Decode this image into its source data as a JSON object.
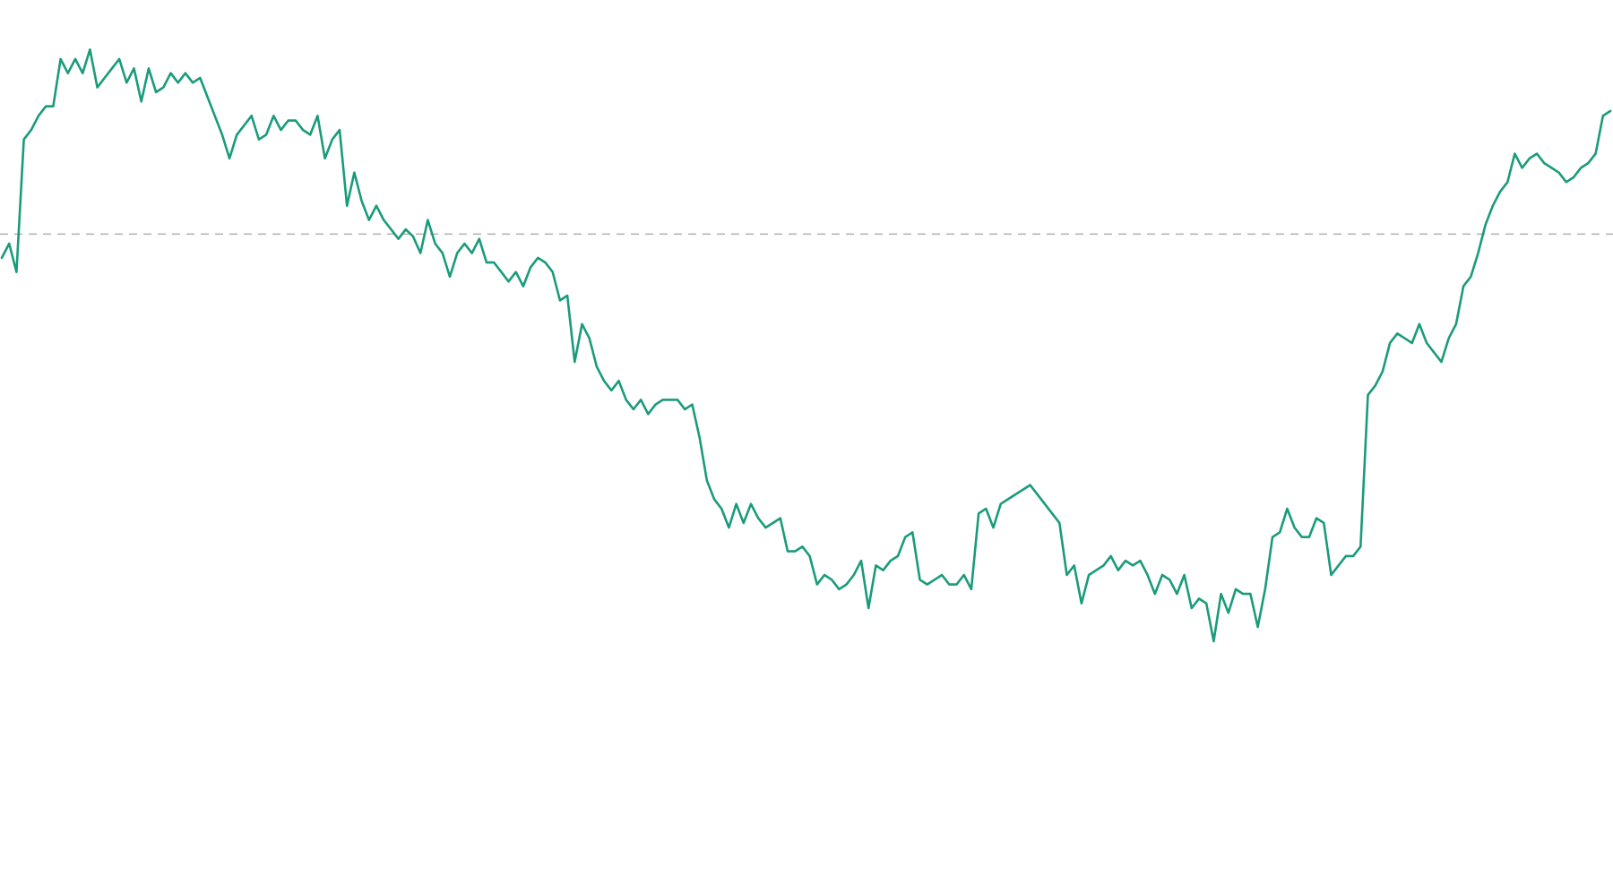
{
  "chart_data": {
    "type": "line",
    "title": "",
    "xlabel": "",
    "ylabel": "",
    "grid": false,
    "legend": "none",
    "reference_line": {
      "value": 0,
      "style": "dashed",
      "color": "#b0b0b0"
    },
    "ylim": [
      -100,
      40
    ],
    "series": [
      {
        "name": "",
        "color": "#1a9b7b",
        "values": [
          -5,
          -2,
          -8,
          20,
          22,
          25,
          27,
          27,
          37,
          34,
          37,
          34,
          39,
          31,
          33,
          35,
          37,
          32,
          35,
          28,
          35,
          30,
          31,
          34,
          32,
          34,
          32,
          33,
          29,
          25,
          21,
          16,
          21,
          23,
          25,
          20,
          21,
          25,
          22,
          24,
          24,
          22,
          21,
          25,
          16,
          20,
          22,
          6,
          13,
          7,
          3,
          6,
          3,
          1,
          -1,
          1,
          -0.5,
          -4,
          3,
          -2,
          -4,
          -9,
          -4,
          -2,
          -4,
          -1,
          -6,
          -6,
          -8,
          -10,
          -8,
          -11,
          -7,
          -5,
          -6,
          -8,
          -14,
          -13,
          -27,
          -19,
          -22,
          -28,
          -31,
          -33,
          -31,
          -35,
          -37,
          -35,
          -38,
          -36,
          -35,
          -35,
          -35,
          -37,
          -36,
          -43,
          -52,
          -56,
          -58,
          -62,
          -57,
          -61,
          -57,
          -60,
          -62,
          -61,
          -60,
          -67,
          -67,
          -66,
          -68,
          -74,
          -72,
          -73,
          -75,
          -74,
          -72,
          -69,
          -79,
          -70,
          -71,
          -69,
          -68,
          -64,
          -63,
          -73,
          -74,
          -73,
          -72,
          -74,
          -74,
          -72,
          -75,
          -59,
          -58,
          -62,
          -57,
          -56,
          -55,
          -54,
          -53,
          -55,
          -57,
          -59,
          -61,
          -72,
          -70,
          -78,
          -72,
          -71,
          -70,
          -68,
          -71,
          -69,
          -70,
          -69,
          -72,
          -76,
          -72,
          -73,
          -76,
          -72,
          -79,
          -77,
          -78,
          -86,
          -76,
          -80,
          -75,
          -76,
          -76,
          -83,
          -75,
          -64,
          -63,
          -58,
          -62,
          -64,
          -64,
          -60,
          -61,
          -72,
          -70,
          -68,
          -68,
          -66,
          -34,
          -32,
          -29,
          -23,
          -21,
          -22,
          -23,
          -19,
          -23,
          -25,
          -27,
          -22,
          -19,
          -11,
          -9,
          -4,
          2,
          6,
          9,
          11,
          17,
          14,
          16,
          17,
          15,
          14,
          13,
          11,
          12,
          14,
          15,
          17,
          25,
          26
        ]
      }
    ]
  }
}
